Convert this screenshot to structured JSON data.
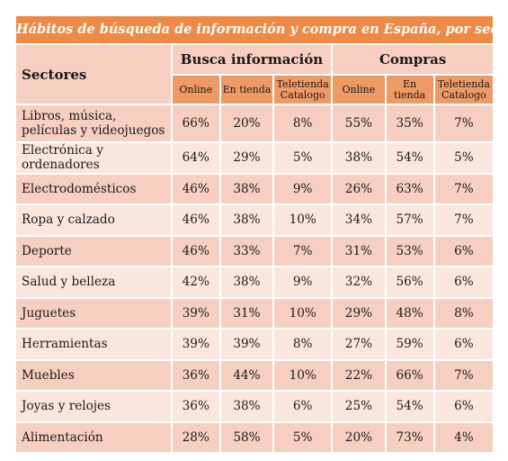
{
  "chart_data": {
    "type": "table",
    "title": "Hábitos de búsqueda de información y compra en España, por sectores",
    "row_header": "Sectores",
    "column_groups": [
      {
        "name": "Busca información",
        "columns": [
          "Online",
          "En tienda",
          "Teletienda Catalogo"
        ]
      },
      {
        "name": "Compras",
        "columns": [
          "Online",
          "En tienda",
          "Teletienda Catalogo"
        ]
      }
    ],
    "rows": [
      {
        "sector": "Libros, música, películas y videojuegos",
        "values": [
          "66%",
          "20%",
          "8%",
          "55%",
          "35%",
          "7%"
        ]
      },
      {
        "sector": "Electrónica y ordenadores",
        "values": [
          "64%",
          "29%",
          "5%",
          "38%",
          "54%",
          "5%"
        ]
      },
      {
        "sector": "Electrodomésticos",
        "values": [
          "46%",
          "38%",
          "9%",
          "26%",
          "63%",
          "7%"
        ]
      },
      {
        "sector": "Ropa y calzado",
        "values": [
          "46%",
          "38%",
          "10%",
          "34%",
          "57%",
          "7%"
        ]
      },
      {
        "sector": "Deporte",
        "values": [
          "46%",
          "33%",
          "7%",
          "31%",
          "53%",
          "6%"
        ]
      },
      {
        "sector": "Salud y belleza",
        "values": [
          "42%",
          "38%",
          "9%",
          "32%",
          "56%",
          "6%"
        ]
      },
      {
        "sector": "Juguetes",
        "values": [
          "39%",
          "31%",
          "10%",
          "29%",
          "48%",
          "8%"
        ]
      },
      {
        "sector": "Herramientas",
        "values": [
          "39%",
          "39%",
          "8%",
          "27%",
          "59%",
          "6%"
        ]
      },
      {
        "sector": "Muebles",
        "values": [
          "36%",
          "44%",
          "10%",
          "22%",
          "66%",
          "7%"
        ]
      },
      {
        "sector": "Joyas y relojes",
        "values": [
          "36%",
          "38%",
          "6%",
          "25%",
          "54%",
          "6%"
        ]
      },
      {
        "sector": "Alimentación",
        "values": [
          "28%",
          "58%",
          "5%",
          "20%",
          "73%",
          "4%"
        ]
      }
    ]
  },
  "colors": {
    "title_bg": "#ee8a45",
    "subheader_bg": "#ee9a66",
    "row_dark": "#f7cfc0",
    "row_light": "#fbe6de"
  }
}
